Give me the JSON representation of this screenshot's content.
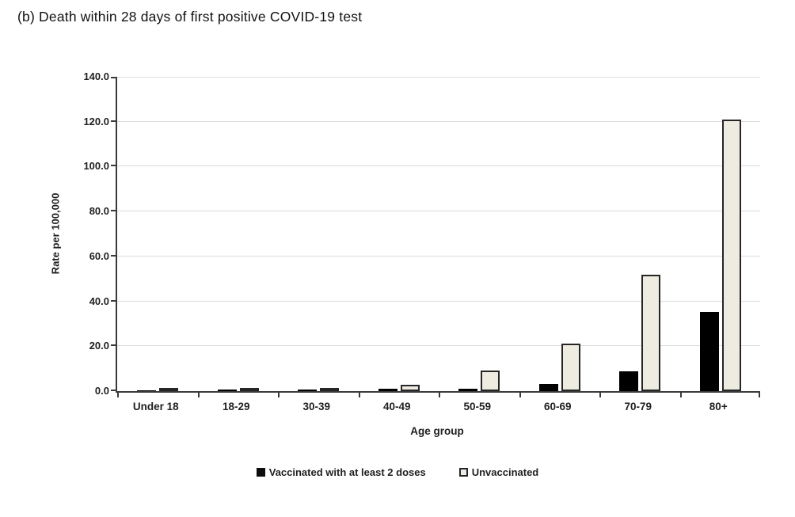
{
  "page": {
    "title": "(b) Death within 28 days of first positive COVID-19 test"
  },
  "chart_data": {
    "type": "bar",
    "title": "(b) Death within 28 days of first positive COVID-19 test",
    "categories": [
      "Under 18",
      "18-29",
      "30-39",
      "40-49",
      "50-59",
      "60-69",
      "70-79",
      "80+"
    ],
    "series": [
      {
        "name": "Vaccinated with at least 2 doses",
        "color": "#000000",
        "values": [
          0.1,
          0.4,
          0.6,
          0.9,
          1.2,
          3.2,
          8.8,
          35.4
        ]
      },
      {
        "name": "Unvaccinated",
        "color": "#eeebe1",
        "border_color": "#262626",
        "values": [
          0.4,
          0.7,
          1.4,
          3.0,
          9.3,
          21.2,
          52.0,
          121.0
        ]
      }
    ],
    "xlabel": "Age group",
    "ylabel": "Rate per 100,000",
    "ylim": [
      0,
      140
    ],
    "ytick_step": 20,
    "ytick_labels": [
      "0.0",
      "20.0",
      "40.0",
      "60.0",
      "80.0",
      "100.0",
      "120.0",
      "140.0"
    ],
    "grid": true,
    "legend_position": "bottom"
  },
  "colors": {
    "axis": "#3a3a3a",
    "gridline": "#dcdcdc",
    "bar_vaccinated": "#000000",
    "bar_unvaccinated_fill": "#eeebe1",
    "bar_unvaccinated_border": "#262626",
    "text": "#1f1f1f"
  }
}
